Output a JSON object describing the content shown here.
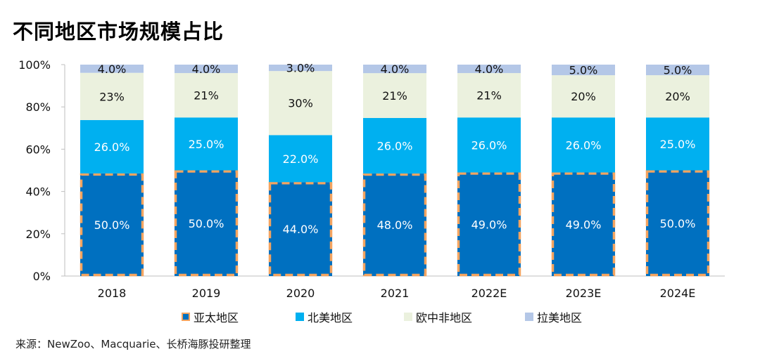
{
  "title": "不同地区市场规模占比",
  "source": "来源：NewZoo、Macquarie、长桥海豚投研整理",
  "chart_data": {
    "type": "bar",
    "stacked": true,
    "categories": [
      "2018",
      "2019",
      "2020",
      "2021",
      "2022E",
      "2023E",
      "2024E"
    ],
    "ylim": [
      0,
      100
    ],
    "yticks": [
      "0%",
      "20%",
      "40%",
      "60%",
      "80%",
      "100%"
    ],
    "legend_position": "bottom",
    "series": [
      {
        "name": "亚太地区",
        "color": "#0070C0",
        "values": [
          50,
          50,
          44,
          48,
          49,
          49,
          50
        ],
        "labels": [
          "50.0%",
          "50.0%",
          "44.0%",
          "48.0%",
          "49.0%",
          "49.0%",
          "50.0%"
        ]
      },
      {
        "name": "北美地区",
        "color": "#00B0F0",
        "values": [
          26,
          25,
          22,
          26,
          26,
          26,
          25
        ],
        "labels": [
          "26.0%",
          "25.0%",
          "22.0%",
          "26.0%",
          "26.0%",
          "26.0%",
          "25.0%"
        ]
      },
      {
        "name": "欧中非地区",
        "color": "#EBF1DE",
        "values": [
          23,
          21,
          30,
          21,
          21,
          20,
          20
        ],
        "labels": [
          "23%",
          "21%",
          "30%",
          "21%",
          "21%",
          "20%",
          "20%"
        ]
      },
      {
        "name": "拉美地区",
        "color": "#B4C7E7",
        "values": [
          4,
          4,
          3,
          4,
          4,
          5,
          5
        ],
        "labels": [
          "4.0%",
          "4.0%",
          "3.0%",
          "4.0%",
          "4.0%",
          "5.0%",
          "5.0%"
        ]
      }
    ],
    "highlight": {
      "series": "亚太地区",
      "border_color": "#F4A460"
    }
  }
}
